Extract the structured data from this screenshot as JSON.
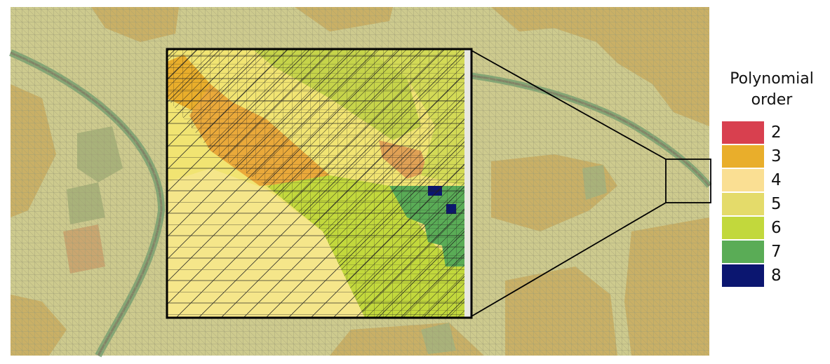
{
  "legend": {
    "title_line1": "Polynomial",
    "title_line2": "order",
    "items": [
      {
        "label": "2",
        "color": "#d8404f"
      },
      {
        "label": "3",
        "color": "#e9ae2b"
      },
      {
        "label": "4",
        "color": "#fadf93"
      },
      {
        "label": "5",
        "color": "#e4db6a"
      },
      {
        "label": "6",
        "color": "#c2d83c"
      },
      {
        "label": "7",
        "color": "#5aac56"
      },
      {
        "label": "8",
        "color": "#0b1670"
      }
    ]
  },
  "background_colors": {
    "dominant_order_5": "#cdca8e",
    "order_4_patches": "#c9b066",
    "band_order_7": "#6a9a6c"
  }
}
